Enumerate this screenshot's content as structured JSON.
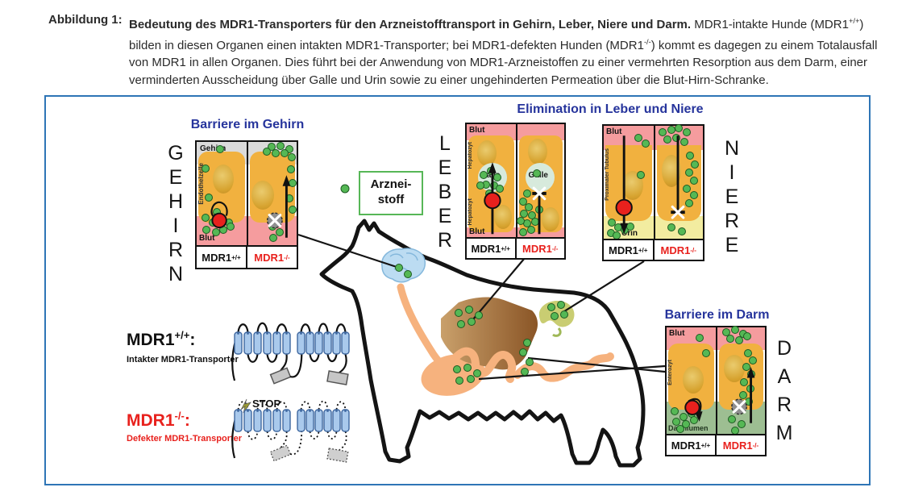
{
  "colors": {
    "border": "#2E75B6",
    "title": "#26349C",
    "red": "#E8211D",
    "green": "#55B855",
    "greenb": "#1D5A22",
    "pink": "#F59C9E",
    "orange": "#F1B13F",
    "grey": "#DBDBDB",
    "galle": "#D7EADC",
    "urin": "#F2ECA0",
    "lumen": "#9DBE92",
    "tube": "#F6B27E",
    "legend": "#57B757"
  },
  "caption": {
    "label": "Abbildung 1:",
    "segments": [
      {
        "t": "Bedeutung des MDR1-Transporters für den Arzneistofftransport in Gehirn, Leber, Niere und Darm.",
        "b": true
      },
      {
        "t": " MDR1-intakte Hunde (MDR1"
      },
      {
        "t": "+/+",
        "sup": true
      },
      {
        "t": ") bilden in diesen Organen einen intakten MDR1-Transporter; bei MDR1-defekten Hunden (MDR1"
      },
      {
        "t": "-/-",
        "sup": true
      },
      {
        "t": ") kommt es dagegen zu einem Totalausfall von MDR1 in allen Organen. Dies führt bei der Anwendung von MDR1-Arzneistoffen zu einer vermehrten Resorption aus dem Darm, einer verminderten Ausscheidung über Galle und Urin sowie zu einer ungehinderten Permeation über die Blut-Hirn-Schranke."
      }
    ]
  },
  "titles": {
    "gehirn": "Barriere im Gehirn",
    "elimination": "Elimination in Leber und Niere",
    "darm": "Barriere im Darm"
  },
  "organ_words": {
    "gehirn": "GEHIRN",
    "leber": "LEBER",
    "niere": "NIERE",
    "darm": "DARM"
  },
  "genotype": {
    "wt_base": "MDR1",
    "wt_sup": "+/+",
    "mut_base": "MDR1",
    "mut_sup": "-/-",
    "colon": ":"
  },
  "legend": {
    "line1": "Arznei-",
    "line2": "stoff"
  },
  "protein": {
    "wt_desc": "Intakter MDR1-Transporter",
    "mut_desc": "Defekter MDR1-Transporter",
    "stop": "STOP"
  },
  "panels": {
    "gehirn": {
      "region_top": "Gehirn",
      "cell": "Endothelzelle",
      "region_bottom": "Blut",
      "dots": [
        [
          23,
          6
        ],
        [
          9,
          21
        ],
        [
          12,
          44
        ],
        [
          9,
          60
        ],
        [
          16,
          64
        ],
        [
          24,
          62
        ],
        [
          32,
          64
        ],
        [
          10,
          70
        ],
        [
          19,
          72
        ],
        [
          27,
          70
        ],
        [
          34,
          67
        ],
        [
          20,
          56
        ],
        [
          75,
          4
        ],
        [
          84,
          3
        ],
        [
          93,
          6
        ],
        [
          79,
          9
        ],
        [
          88,
          9
        ],
        [
          95,
          12
        ],
        [
          70,
          8
        ],
        [
          94,
          22
        ],
        [
          96,
          33
        ],
        [
          93,
          45
        ],
        [
          96,
          54
        ],
        [
          76,
          67
        ],
        [
          83,
          72
        ],
        [
          77,
          76
        ]
      ]
    },
    "leber": {
      "blut_top": "Blut",
      "blut_bottom": "Blut",
      "galle": "Galle",
      "hepatozyt": "Hepatozyt",
      "dots": [
        [
          17,
          38
        ],
        [
          25,
          35
        ],
        [
          31,
          40
        ],
        [
          20,
          45
        ],
        [
          28,
          46
        ],
        [
          34,
          48
        ],
        [
          14,
          46
        ],
        [
          23,
          52
        ],
        [
          72,
          37
        ],
        [
          62,
          52
        ],
        [
          58,
          58
        ],
        [
          64,
          62
        ],
        [
          59,
          67
        ],
        [
          67,
          68
        ],
        [
          74,
          64
        ],
        [
          62,
          74
        ],
        [
          70,
          73
        ],
        [
          55,
          72
        ],
        [
          66,
          79
        ],
        [
          58,
          81
        ]
      ]
    },
    "niere": {
      "blut": "Blut",
      "tubulus": "Proximaler Tubulus",
      "urin": "Urin",
      "dots": [
        [
          35,
          9
        ],
        [
          42,
          13
        ],
        [
          37,
          37
        ],
        [
          8,
          72
        ],
        [
          15,
          76
        ],
        [
          7,
          80
        ],
        [
          21,
          78
        ],
        [
          13,
          82
        ],
        [
          27,
          75
        ],
        [
          59,
          5
        ],
        [
          68,
          3
        ],
        [
          76,
          2
        ],
        [
          84,
          5
        ],
        [
          64,
          10
        ],
        [
          73,
          9
        ],
        [
          81,
          12
        ],
        [
          87,
          22
        ],
        [
          92,
          29
        ],
        [
          86,
          35
        ],
        [
          91,
          41
        ],
        [
          84,
          47
        ],
        [
          91,
          52
        ],
        [
          86,
          58
        ],
        [
          68,
          76
        ],
        [
          79,
          79
        ]
      ]
    },
    "darm": {
      "blut": "Blut",
      "enterozyt": "Enterozyt",
      "lumen": "Darmlumen",
      "dots": [
        [
          34,
          8
        ],
        [
          40,
          20
        ],
        [
          8,
          66
        ],
        [
          17,
          70
        ],
        [
          25,
          68
        ],
        [
          10,
          74
        ],
        [
          20,
          76
        ],
        [
          28,
          73
        ],
        [
          14,
          80
        ],
        [
          61,
          4
        ],
        [
          70,
          2
        ],
        [
          78,
          5
        ],
        [
          65,
          9
        ],
        [
          74,
          10
        ],
        [
          82,
          7
        ],
        [
          83,
          20
        ],
        [
          88,
          26
        ],
        [
          81,
          31
        ],
        [
          86,
          37
        ],
        [
          79,
          43
        ],
        [
          85,
          48
        ],
        [
          78,
          53
        ],
        [
          84,
          58
        ],
        [
          66,
          72
        ],
        [
          76,
          76
        ],
        [
          70,
          81
        ]
      ]
    }
  },
  "dog_dots": {
    "brain": [
      [
        438,
        212
      ],
      [
        449,
        220
      ]
    ],
    "liver": [
      [
        512,
        268
      ],
      [
        525,
        264
      ],
      [
        537,
        271
      ],
      [
        515,
        282
      ],
      [
        528,
        279
      ]
    ],
    "kidney": [
      [
        627,
        261
      ],
      [
        639,
        258
      ],
      [
        631,
        272
      ],
      [
        643,
        270
      ]
    ],
    "stomach": [
      [
        510,
        338
      ],
      [
        523,
        336
      ],
      [
        535,
        343
      ],
      [
        513,
        352
      ],
      [
        527,
        350
      ]
    ],
    "intestine": [
      [
        597,
        305
      ],
      [
        592,
        317
      ],
      [
        600,
        329
      ],
      [
        594,
        341
      ]
    ]
  }
}
